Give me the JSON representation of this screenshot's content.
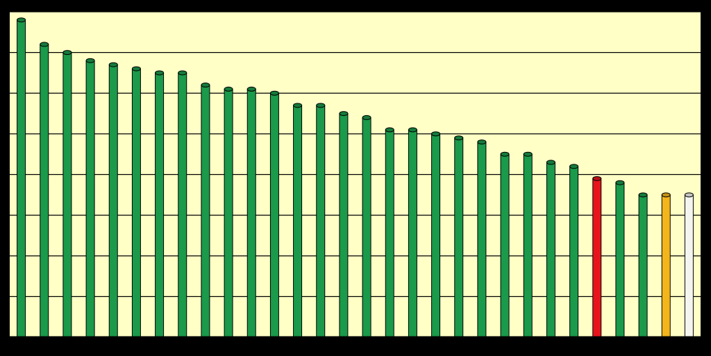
{
  "chart_data": {
    "type": "bar",
    "categories": [
      null,
      null,
      null,
      null,
      null,
      null,
      null,
      null,
      null,
      null,
      null,
      null,
      null,
      null,
      null,
      null,
      null,
      null,
      null,
      null,
      null,
      null,
      null,
      null,
      null,
      null,
      null,
      null,
      null,
      null
    ],
    "values": [
      7.8,
      7.2,
      7.0,
      6.8,
      6.7,
      6.6,
      6.5,
      6.5,
      6.2,
      6.1,
      6.1,
      6.0,
      5.7,
      5.7,
      5.5,
      5.4,
      5.1,
      5.1,
      5.0,
      4.9,
      4.8,
      4.5,
      4.5,
      4.3,
      4.2,
      3.9,
      3.8,
      3.5,
      3.5,
      3.5
    ],
    "colors": [
      "#1a9a4a",
      "#1a9a4a",
      "#1a9a4a",
      "#1a9a4a",
      "#1a9a4a",
      "#1a9a4a",
      "#1a9a4a",
      "#1a9a4a",
      "#1a9a4a",
      "#1a9a4a",
      "#1a9a4a",
      "#1a9a4a",
      "#1a9a4a",
      "#1a9a4a",
      "#1a9a4a",
      "#1a9a4a",
      "#1a9a4a",
      "#1a9a4a",
      "#1a9a4a",
      "#1a9a4a",
      "#1a9a4a",
      "#1a9a4a",
      "#1a9a4a",
      "#1a9a4a",
      "#1a9a4a",
      "#e8141c",
      "#1a9a4a",
      "#1a9a4a",
      "#f2b51c",
      "#f4f4f0"
    ],
    "ylim": [
      0,
      8
    ],
    "yticks": [
      0,
      1,
      2,
      3,
      4,
      5,
      6,
      7,
      8
    ],
    "grid": true,
    "background": "#ffffc6"
  }
}
